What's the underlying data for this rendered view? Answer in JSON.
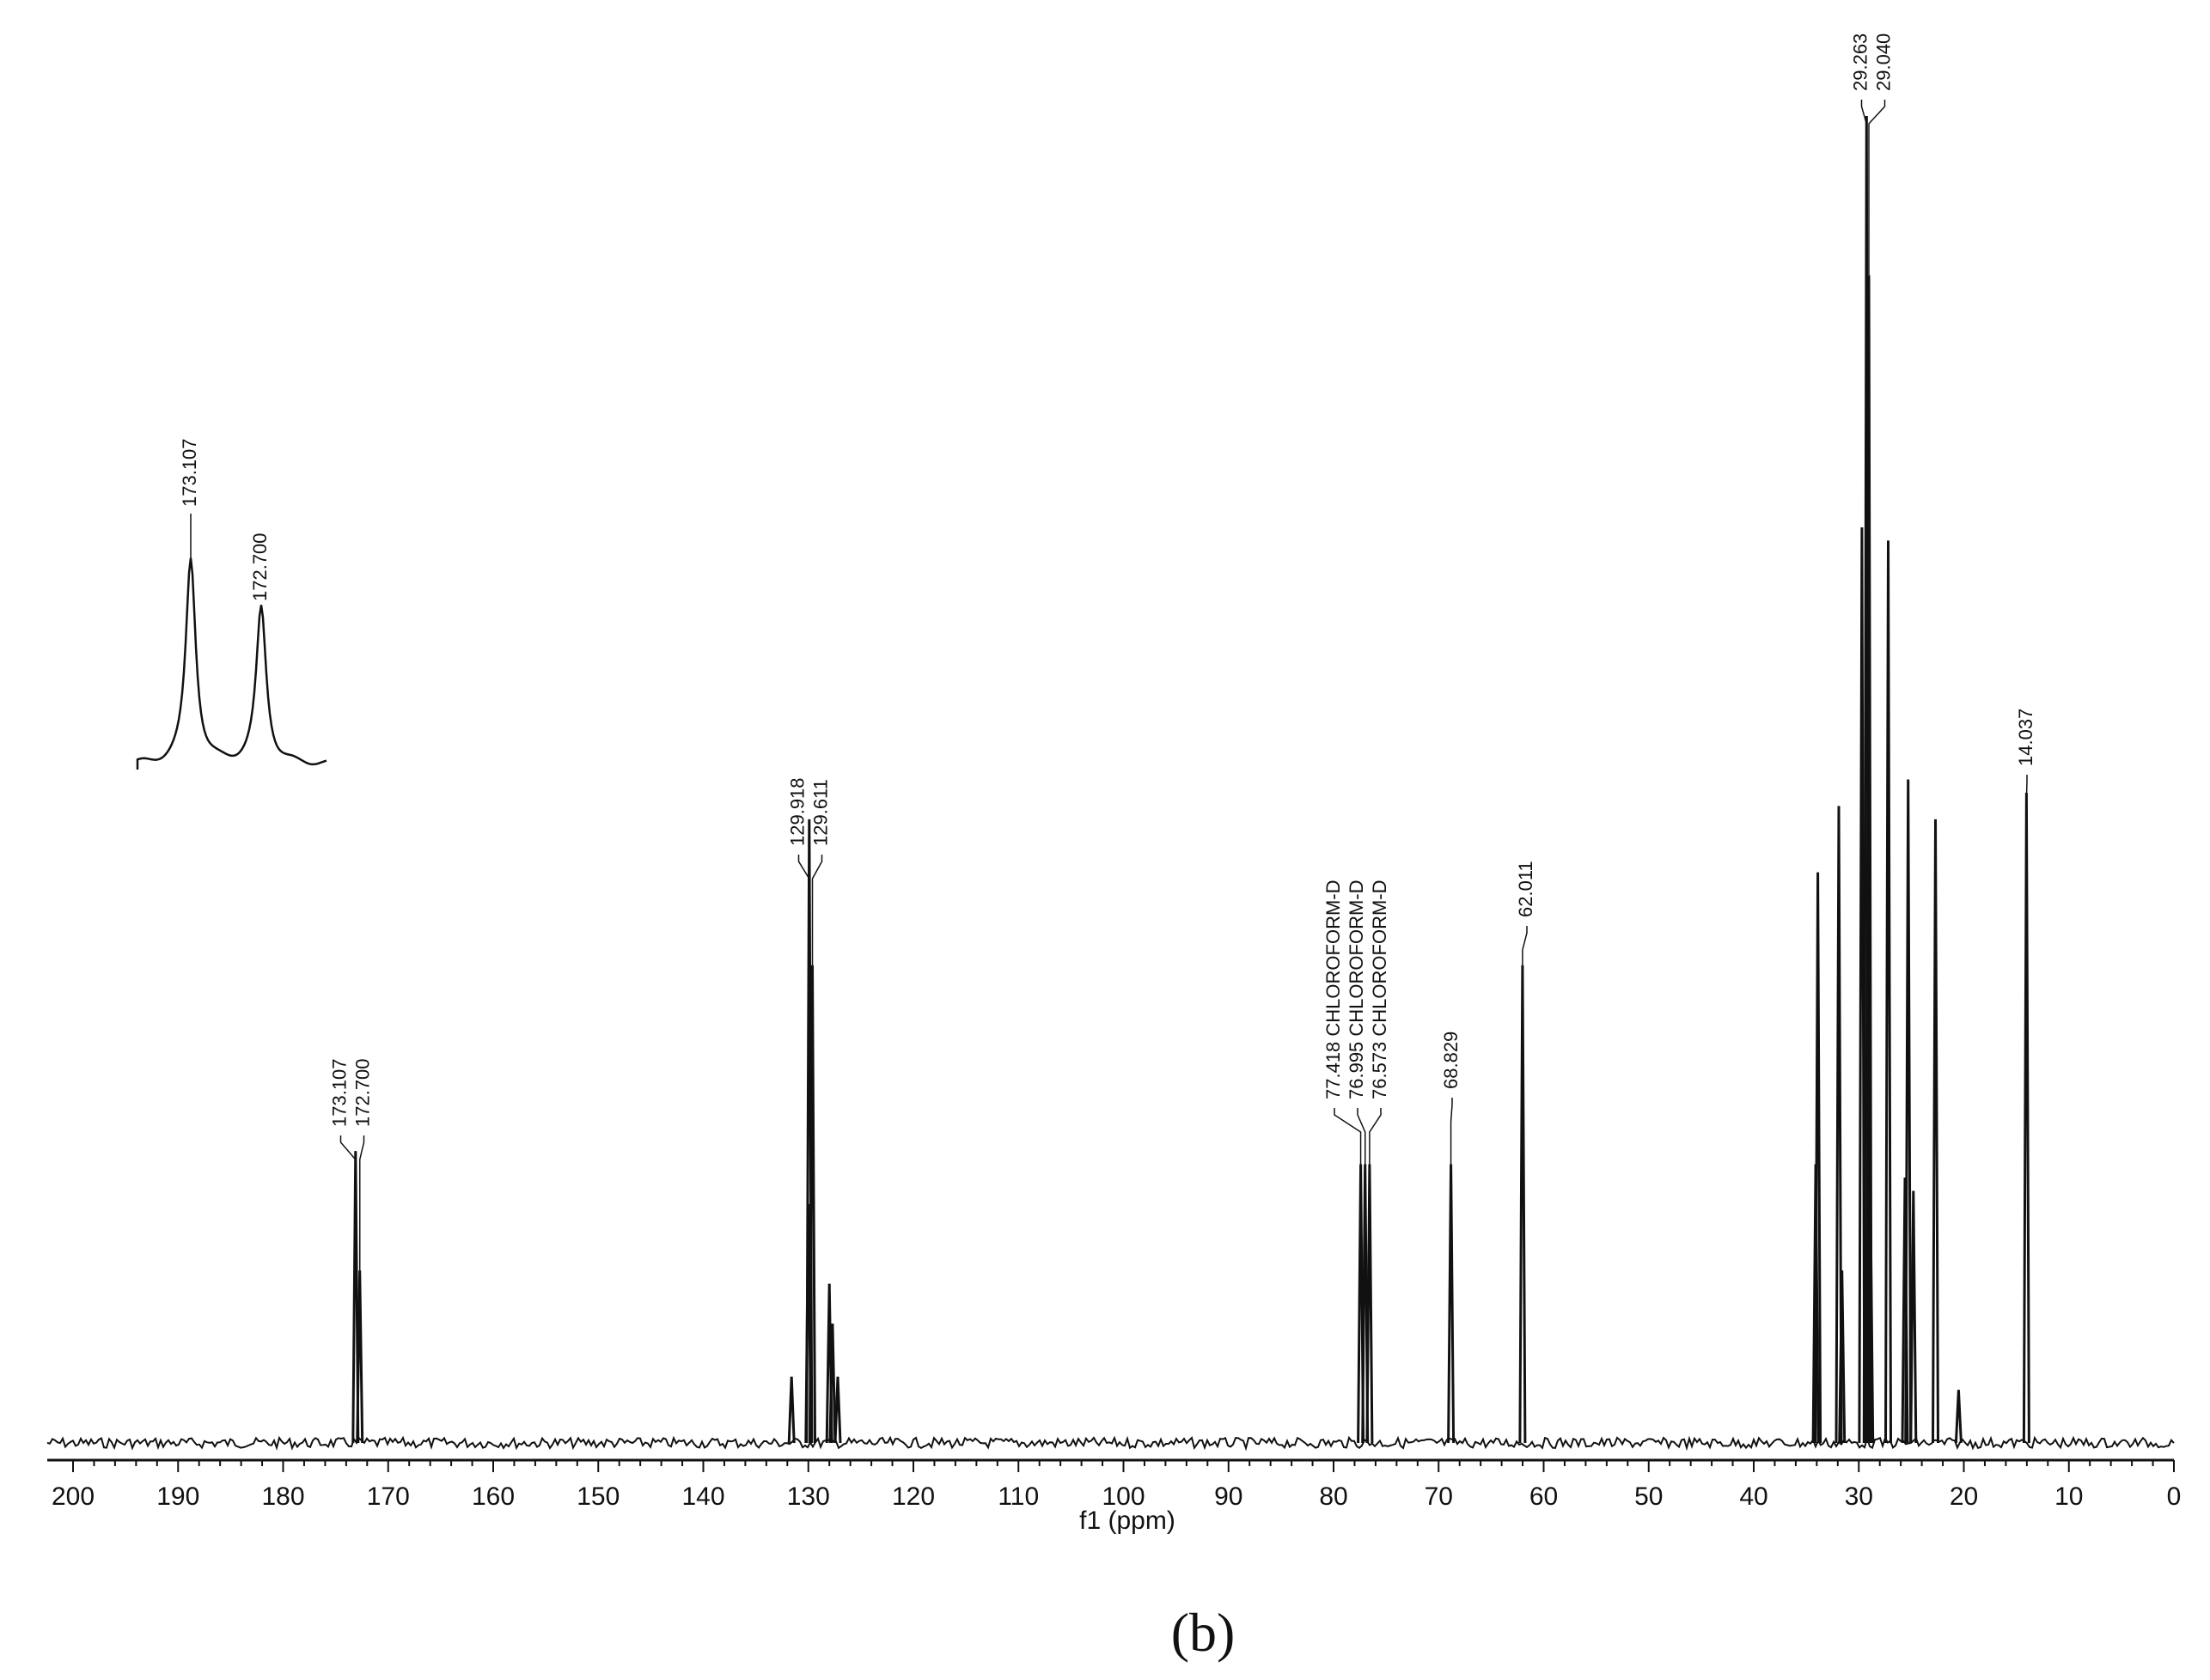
{
  "chart_data": {
    "type": "line",
    "xlabel": "f1 (ppm)",
    "xlim": [
      200,
      0
    ],
    "x_reversed": true,
    "x_ticks": [
      200,
      190,
      180,
      170,
      160,
      150,
      140,
      130,
      120,
      110,
      100,
      90,
      80,
      70,
      60,
      50,
      40,
      30,
      20,
      10,
      0
    ],
    "y_axis_shown": false,
    "grid": false,
    "line_color": "#111111",
    "peaks": [
      {
        "ppm": 173.107,
        "height": 0.22
      },
      {
        "ppm": 172.7,
        "height": 0.13
      },
      {
        "ppm": 131.6,
        "height": 0.05
      },
      {
        "ppm": 130.0,
        "height": 0.18
      },
      {
        "ppm": 129.918,
        "height": 0.47
      },
      {
        "ppm": 129.611,
        "height": 0.36
      },
      {
        "ppm": 128.0,
        "height": 0.12
      },
      {
        "ppm": 127.7,
        "height": 0.09
      },
      {
        "ppm": 127.2,
        "height": 0.05
      },
      {
        "ppm": 77.418,
        "height": 0.21
      },
      {
        "ppm": 76.995,
        "height": 0.21
      },
      {
        "ppm": 76.573,
        "height": 0.21
      },
      {
        "ppm": 68.829,
        "height": 0.21
      },
      {
        "ppm": 62.011,
        "height": 0.36
      },
      {
        "ppm": 34.1,
        "height": 0.21
      },
      {
        "ppm": 33.9,
        "height": 0.43
      },
      {
        "ppm": 31.9,
        "height": 0.48
      },
      {
        "ppm": 31.6,
        "height": 0.13
      },
      {
        "ppm": 29.7,
        "height": 0.69
      },
      {
        "ppm": 29.263,
        "height": 1.0
      },
      {
        "ppm": 29.04,
        "height": 0.88
      },
      {
        "ppm": 28.9,
        "height": 0.19
      },
      {
        "ppm": 27.2,
        "height": 0.68
      },
      {
        "ppm": 25.6,
        "height": 0.2
      },
      {
        "ppm": 25.3,
        "height": 0.5
      },
      {
        "ppm": 24.8,
        "height": 0.19
      },
      {
        "ppm": 22.7,
        "height": 0.47
      },
      {
        "ppm": 20.5,
        "height": 0.04
      },
      {
        "ppm": 14.037,
        "height": 0.49
      }
    ],
    "annotations": [
      {
        "id": "carbonyl",
        "labels": [
          "173.107",
          "172.700"
        ],
        "peaks_ppm": [
          173.107,
          172.7
        ]
      },
      {
        "id": "olefin",
        "labels": [
          "129.918",
          "129.611"
        ],
        "peaks_ppm": [
          129.918,
          129.611
        ]
      },
      {
        "id": "solvent",
        "labels": [
          "77.418 CHLOROFORM-D",
          "76.995 CHLOROFORM-D",
          "76.573 CHLOROFORM-D"
        ],
        "peaks_ppm": [
          77.418,
          76.995,
          76.573
        ]
      },
      {
        "id": "glycerol-ch",
        "labels": [
          "68.829"
        ],
        "peaks_ppm": [
          68.829
        ]
      },
      {
        "id": "glycerol-ch2",
        "labels": [
          "62.011"
        ],
        "peaks_ppm": [
          62.011
        ]
      },
      {
        "id": "methylene",
        "labels": [
          "29.263",
          "29.040"
        ],
        "peaks_ppm": [
          29.263,
          29.04
        ]
      },
      {
        "id": "methyl",
        "labels": [
          "14.037"
        ],
        "peaks_ppm": [
          14.037
        ]
      }
    ],
    "inset": {
      "description": "expanded carbonyl region",
      "labels": [
        "173.107",
        "172.700"
      ],
      "peaks": [
        {
          "ppm": 173.107,
          "height": 1.0
        },
        {
          "ppm": 172.7,
          "height": 0.76
        }
      ]
    }
  },
  "figure": {
    "panel_label": "(b)"
  }
}
